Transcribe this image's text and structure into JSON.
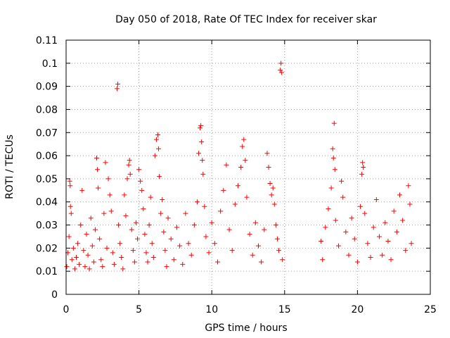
{
  "chart_data": {
    "type": "scatter",
    "title": "Day 050 of 2018, Rate Of TEC Index for receiver skar",
    "xlabel": "GPS time / hours",
    "ylabel": "ROTI / TECUs",
    "xlim": [
      0,
      25
    ],
    "ylim": [
      0,
      0.11
    ],
    "x_ticks": [
      "0",
      "5",
      "10",
      "15",
      "20",
      "25"
    ],
    "y_ticks": [
      "0",
      "0.01",
      "0.02",
      "0.03",
      "0.04",
      "0.05",
      "0.06",
      "0.07",
      "0.08",
      "0.09",
      "0.1",
      "0.11"
    ],
    "grid": true,
    "marker": "+",
    "color": "#ff0000",
    "series": [
      {
        "name": "",
        "points": [
          [
            0.05,
            0.012
          ],
          [
            0.12,
            0.018
          ],
          [
            0.2,
            0.025
          ],
          [
            0.25,
            0.049
          ],
          [
            0.28,
            0.047
          ],
          [
            0.3,
            0.038
          ],
          [
            0.35,
            0.035
          ],
          [
            0.4,
            0.015
          ],
          [
            0.5,
            0.02
          ],
          [
            0.6,
            0.011
          ],
          [
            0.7,
            0.016
          ],
          [
            0.8,
            0.022
          ],
          [
            0.9,
            0.013
          ],
          [
            1.0,
            0.03
          ],
          [
            1.1,
            0.045
          ],
          [
            1.2,
            0.019
          ],
          [
            1.3,
            0.012
          ],
          [
            1.4,
            0.026
          ],
          [
            1.5,
            0.017
          ],
          [
            1.6,
            0.011
          ],
          [
            1.7,
            0.033
          ],
          [
            1.8,
            0.021
          ],
          [
            1.9,
            0.014
          ],
          [
            2.0,
            0.028
          ],
          [
            2.1,
            0.059
          ],
          [
            2.15,
            0.054
          ],
          [
            2.2,
            0.046
          ],
          [
            2.3,
            0.024
          ],
          [
            2.4,
            0.015
          ],
          [
            2.5,
            0.012
          ],
          [
            2.6,
            0.035
          ],
          [
            2.7,
            0.057
          ],
          [
            2.8,
            0.02
          ],
          [
            2.9,
            0.05
          ],
          [
            3.0,
            0.043
          ],
          [
            3.1,
            0.036
          ],
          [
            3.2,
            0.018
          ],
          [
            3.3,
            0.013
          ],
          [
            3.5,
            0.089
          ],
          [
            3.55,
            0.091
          ],
          [
            3.6,
            0.03
          ],
          [
            3.7,
            0.022
          ],
          [
            3.8,
            0.016
          ],
          [
            3.9,
            0.011
          ],
          [
            4.0,
            0.043
          ],
          [
            4.1,
            0.034
          ],
          [
            4.2,
            0.05
          ],
          [
            4.3,
            0.056
          ],
          [
            4.35,
            0.058
          ],
          [
            4.4,
            0.052
          ],
          [
            4.5,
            0.028
          ],
          [
            4.6,
            0.019
          ],
          [
            4.7,
            0.014
          ],
          [
            4.8,
            0.031
          ],
          [
            4.9,
            0.024
          ],
          [
            5.0,
            0.054
          ],
          [
            5.1,
            0.049
          ],
          [
            5.2,
            0.045
          ],
          [
            5.3,
            0.037
          ],
          [
            5.4,
            0.026
          ],
          [
            5.5,
            0.018
          ],
          [
            5.6,
            0.014
          ],
          [
            5.7,
            0.03
          ],
          [
            5.8,
            0.042
          ],
          [
            5.9,
            0.022
          ],
          [
            6.0,
            0.016
          ],
          [
            6.1,
            0.06
          ],
          [
            6.2,
            0.067
          ],
          [
            6.3,
            0.069
          ],
          [
            6.35,
            0.063
          ],
          [
            6.4,
            0.051
          ],
          [
            6.5,
            0.035
          ],
          [
            6.6,
            0.041
          ],
          [
            6.7,
            0.027
          ],
          [
            6.8,
            0.019
          ],
          [
            6.9,
            0.012
          ],
          [
            7.0,
            0.033
          ],
          [
            7.2,
            0.024
          ],
          [
            7.4,
            0.015
          ],
          [
            7.6,
            0.029
          ],
          [
            7.8,
            0.021
          ],
          [
            8.0,
            0.013
          ],
          [
            8.2,
            0.035
          ],
          [
            8.4,
            0.022
          ],
          [
            8.6,
            0.017
          ],
          [
            8.8,
            0.03
          ],
          [
            9.0,
            0.04
          ],
          [
            9.1,
            0.061
          ],
          [
            9.2,
            0.072
          ],
          [
            9.25,
            0.073
          ],
          [
            9.3,
            0.066
          ],
          [
            9.35,
            0.058
          ],
          [
            9.4,
            0.052
          ],
          [
            9.5,
            0.038
          ],
          [
            9.6,
            0.025
          ],
          [
            9.8,
            0.018
          ],
          [
            10.0,
            0.031
          ],
          [
            10.2,
            0.022
          ],
          [
            10.4,
            0.014
          ],
          [
            10.6,
            0.036
          ],
          [
            10.8,
            0.045
          ],
          [
            11.0,
            0.056
          ],
          [
            11.2,
            0.028
          ],
          [
            11.4,
            0.019
          ],
          [
            11.6,
            0.039
          ],
          [
            11.8,
            0.047
          ],
          [
            12.0,
            0.055
          ],
          [
            12.1,
            0.064
          ],
          [
            12.2,
            0.067
          ],
          [
            12.3,
            0.058
          ],
          [
            12.4,
            0.042
          ],
          [
            12.6,
            0.026
          ],
          [
            12.8,
            0.017
          ],
          [
            13.0,
            0.031
          ],
          [
            13.2,
            0.021
          ],
          [
            13.4,
            0.014
          ],
          [
            13.6,
            0.028
          ],
          [
            13.8,
            0.061
          ],
          [
            13.9,
            0.055
          ],
          [
            14.0,
            0.048
          ],
          [
            14.1,
            0.043
          ],
          [
            14.2,
            0.046
          ],
          [
            14.3,
            0.039
          ],
          [
            14.4,
            0.03
          ],
          [
            14.5,
            0.024
          ],
          [
            14.6,
            0.019
          ],
          [
            14.7,
            0.097
          ],
          [
            14.75,
            0.1
          ],
          [
            14.8,
            0.096
          ],
          [
            14.85,
            0.015
          ],
          [
            17.5,
            0.023
          ],
          [
            17.6,
            0.015
          ],
          [
            17.8,
            0.029
          ],
          [
            18.0,
            0.037
          ],
          [
            18.2,
            0.046
          ],
          [
            18.3,
            0.063
          ],
          [
            18.35,
            0.059
          ],
          [
            18.4,
            0.074
          ],
          [
            18.45,
            0.054
          ],
          [
            18.5,
            0.032
          ],
          [
            18.7,
            0.021
          ],
          [
            18.9,
            0.049
          ],
          [
            19.0,
            0.042
          ],
          [
            19.2,
            0.027
          ],
          [
            19.4,
            0.017
          ],
          [
            19.6,
            0.033
          ],
          [
            19.8,
            0.024
          ],
          [
            20.0,
            0.014
          ],
          [
            20.2,
            0.038
          ],
          [
            20.3,
            0.052
          ],
          [
            20.35,
            0.057
          ],
          [
            20.4,
            0.055
          ],
          [
            20.5,
            0.035
          ],
          [
            20.7,
            0.022
          ],
          [
            20.9,
            0.016
          ],
          [
            21.1,
            0.029
          ],
          [
            21.3,
            0.041
          ],
          [
            21.5,
            0.025
          ],
          [
            21.7,
            0.017
          ],
          [
            21.9,
            0.031
          ],
          [
            22.1,
            0.023
          ],
          [
            22.3,
            0.015
          ],
          [
            22.5,
            0.036
          ],
          [
            22.7,
            0.027
          ],
          [
            22.9,
            0.043
          ],
          [
            23.1,
            0.032
          ],
          [
            23.3,
            0.019
          ],
          [
            23.5,
            0.047
          ],
          [
            23.6,
            0.039
          ],
          [
            23.7,
            0.022
          ]
        ]
      }
    ]
  }
}
